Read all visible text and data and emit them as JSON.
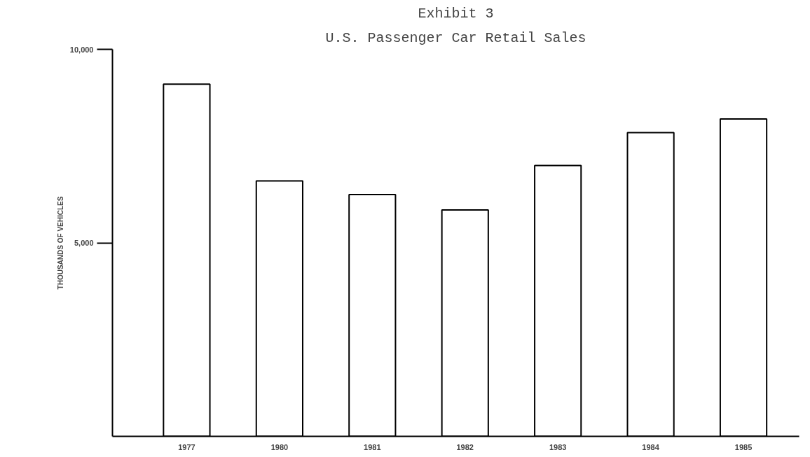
{
  "chart_data": {
    "type": "bar",
    "title": "Exhibit 3",
    "subtitle": "U.S. Passenger Car Retail Sales",
    "ylabel": "THOUSANDS OF VEHICLES",
    "categories": [
      "1977",
      "1980",
      "1981",
      "1982",
      "1983",
      "1984",
      "1985"
    ],
    "values": [
      9100,
      6600,
      6250,
      5850,
      7000,
      7850,
      8200
    ],
    "color": "#ffffff",
    "ylim": [
      0,
      10000
    ],
    "yticks": [
      {
        "value": 5000,
        "label": "5,000"
      },
      {
        "value": 10000,
        "label": "10,000"
      }
    ],
    "grid": false
  }
}
